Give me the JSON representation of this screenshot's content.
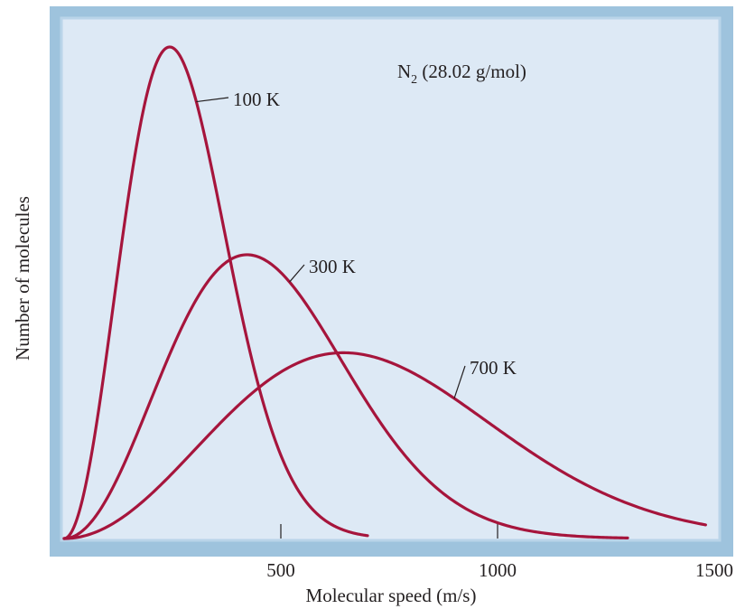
{
  "chart_data": {
    "type": "line",
    "title": "",
    "annotation": {
      "molecule": "N",
      "subscript": "2",
      "molar_mass": " (28.02 g/mol)"
    },
    "xlabel": "Molecular speed (m/s)",
    "ylabel": "Number of molecules",
    "xlim": [
      0,
      1500
    ],
    "ylim": [
      0,
      1
    ],
    "xticks": [
      500,
      1000,
      1500
    ],
    "x_tick_labels": [
      "500",
      "1000",
      "1500"
    ],
    "yticks": [],
    "grid": false,
    "legend": "none",
    "molar_mass_kg_per_mol": 0.02802,
    "series": [
      {
        "name": "100 K",
        "temperature": 100,
        "x_max": 700,
        "color": "#a6153c"
      },
      {
        "name": "300 K",
        "temperature": 300,
        "x_max": 1300,
        "color": "#a6153c"
      },
      {
        "name": "700 K",
        "temperature": 700,
        "x_max": 1480,
        "color": "#a6153c"
      }
    ],
    "frame_colors": {
      "border": "#9ec3dd",
      "panel": "#dde9f5"
    }
  }
}
